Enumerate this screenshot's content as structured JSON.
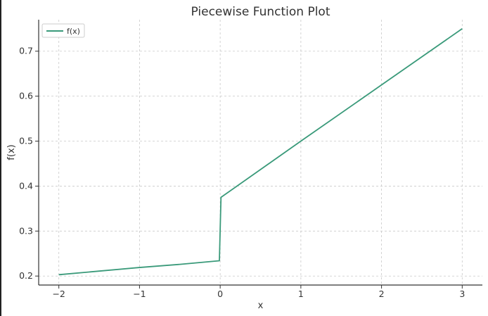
{
  "chart_data": {
    "type": "line",
    "title": "Piecewise Function Plot",
    "xlabel": "x",
    "ylabel": "f(x)",
    "xlim": [
      -2.25,
      3.25
    ],
    "ylim": [
      0.18,
      0.77
    ],
    "xticks": [
      -2,
      -1,
      0,
      1,
      2,
      3
    ],
    "xtick_labels": [
      "−2",
      "−1",
      "0",
      "1",
      "2",
      "3"
    ],
    "yticks": [
      0.2,
      0.3,
      0.4,
      0.5,
      0.6,
      0.7
    ],
    "ytick_labels": [
      "0.2",
      "0.3",
      "0.4",
      "0.5",
      "0.6",
      "0.7"
    ],
    "grid": true,
    "legend_position": "top-left",
    "color": "#3a9a7a",
    "series": [
      {
        "name": "f(x)",
        "x": [
          -2,
          -1.5,
          -1,
          -0.5,
          -0.01,
          0.01,
          1,
          2,
          3
        ],
        "y": [
          0.203,
          0.211,
          0.219,
          0.226,
          0.234,
          0.375,
          0.5,
          0.625,
          0.75
        ]
      }
    ]
  }
}
